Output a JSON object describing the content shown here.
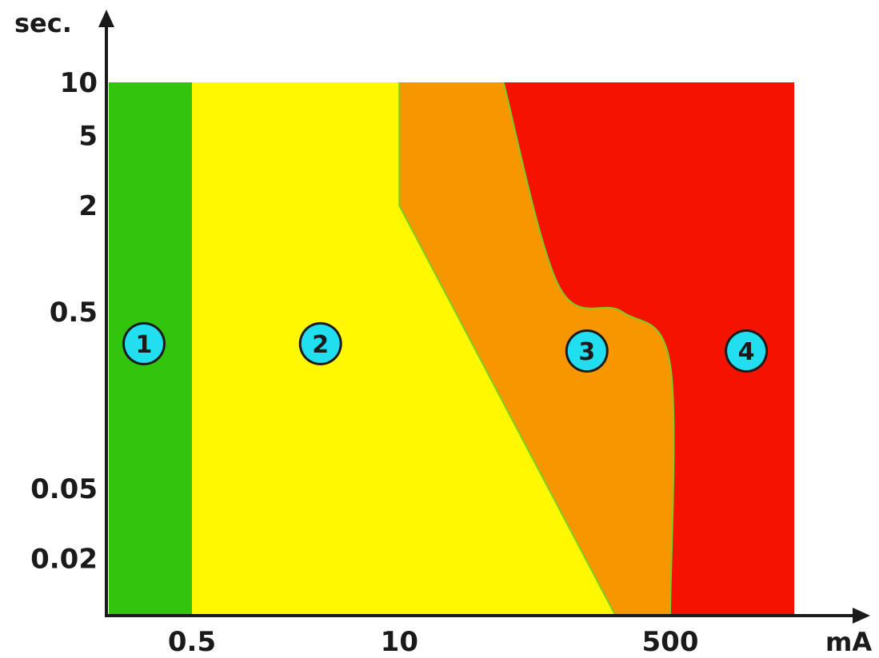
{
  "chart_data": {
    "type": "area",
    "title": "",
    "xlabel": "mA",
    "ylabel": "sec.",
    "x_scale": "log",
    "y_scale": "log",
    "x_ticks": [
      {
        "value": 0.5,
        "label": "0.5"
      },
      {
        "value": 10,
        "label": "10"
      },
      {
        "value": 500,
        "label": "500"
      }
    ],
    "y_ticks": [
      {
        "value": 10,
        "label": "10"
      },
      {
        "value": 5,
        "label": "5"
      },
      {
        "value": 2,
        "label": "2"
      },
      {
        "value": 0.5,
        "label": "0.5"
      },
      {
        "value": 0.05,
        "label": "0.05"
      },
      {
        "value": 0.02,
        "label": "0.02"
      }
    ],
    "xlim": [
      0.1,
      5000
    ],
    "ylim": [
      0.01,
      10
    ],
    "grid": false,
    "zones": [
      {
        "label": "1",
        "color": "#33c40c",
        "label_at": {
          "x": 0.25,
          "y": 0.33
        }
      },
      {
        "label": "2",
        "color": "#fff800",
        "label_at": {
          "x": 3.2,
          "y": 0.33
        }
      },
      {
        "label": "3",
        "color": "#f89600",
        "label_at": {
          "x": 150,
          "y": 0.3
        }
      },
      {
        "label": "4",
        "color": "#f51200",
        "label_at": {
          "x": 1500,
          "y": 0.3
        }
      }
    ],
    "boundaries": [
      {
        "between": "1-2",
        "points": [
          [
            0.5,
            10
          ],
          [
            0.5,
            0.01
          ]
        ]
      },
      {
        "between": "2-3",
        "points": [
          [
            10,
            10
          ],
          [
            10,
            2
          ],
          [
            220,
            0.01
          ]
        ]
      },
      {
        "between": "3-4",
        "points": [
          [
            45,
            10
          ],
          [
            100,
            0.7
          ],
          [
            250,
            0.5
          ],
          [
            500,
            0.25
          ],
          [
            500,
            0.01
          ]
        ]
      }
    ],
    "x_right_edge": 3000
  }
}
